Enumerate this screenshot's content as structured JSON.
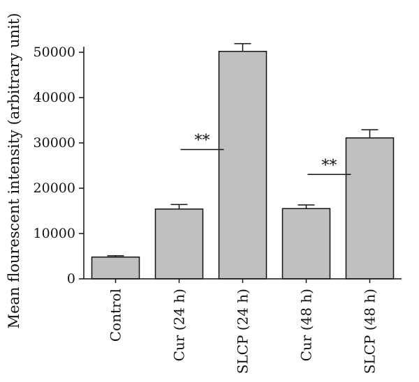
{
  "chart_data": {
    "type": "bar",
    "ylabel": "Mean flourescent intensity (arbitrary unit)",
    "xlabel": "",
    "categories": [
      "Control",
      "Cur (24 h)",
      "SLCP (24 h)",
      "Cur (48 h)",
      "SLCP (48 h)"
    ],
    "values": [
      4800,
      15400,
      50200,
      15500,
      31100
    ],
    "errors": [
      300,
      1000,
      1700,
      800,
      1800
    ],
    "ylim": [
      0,
      50000
    ],
    "yticks": [
      "0",
      "10000",
      "20000",
      "30000",
      "40000",
      "50000"
    ],
    "bar_color": "#c0c0c0",
    "annotations": [
      {
        "text": "**",
        "x_between": [
          1,
          2
        ],
        "y": 29000
      },
      {
        "text": "**",
        "x_between": [
          3,
          4
        ],
        "y": 23500
      }
    ]
  }
}
